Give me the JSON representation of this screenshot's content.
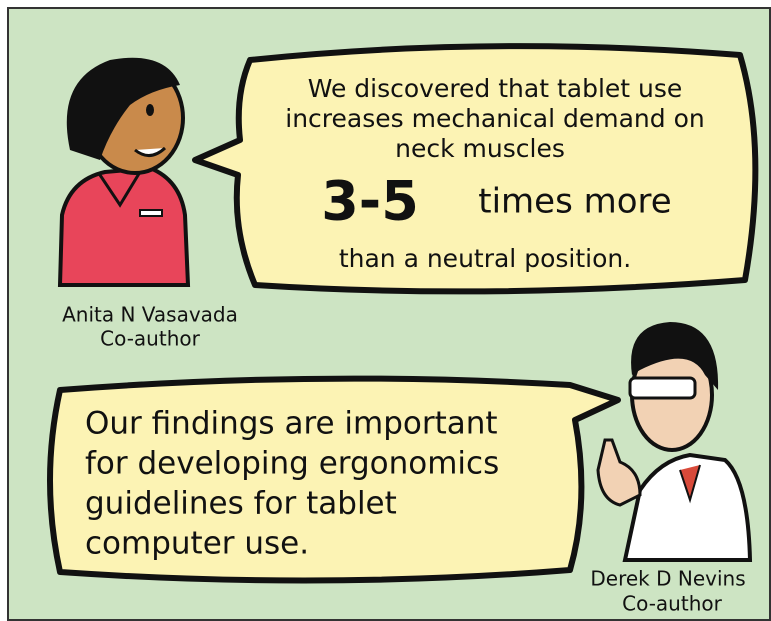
{
  "bubble_1": {
    "lines": [
      "We discovered that tablet use",
      "increases mechanical demand on",
      "neck muscles",
      "3-5",
      "times more",
      "than a neutral position."
    ]
  },
  "caption_1": {
    "name": "Anita N Vasavada",
    "role": "Co-author"
  },
  "bubble_2": {
    "lines": [
      "Our findings are important",
      "for developing ergonomics",
      "guidelines for tablet",
      "computer use."
    ]
  },
  "caption_2": {
    "name": "Derek D Nevins",
    "role": "Co-author"
  }
}
